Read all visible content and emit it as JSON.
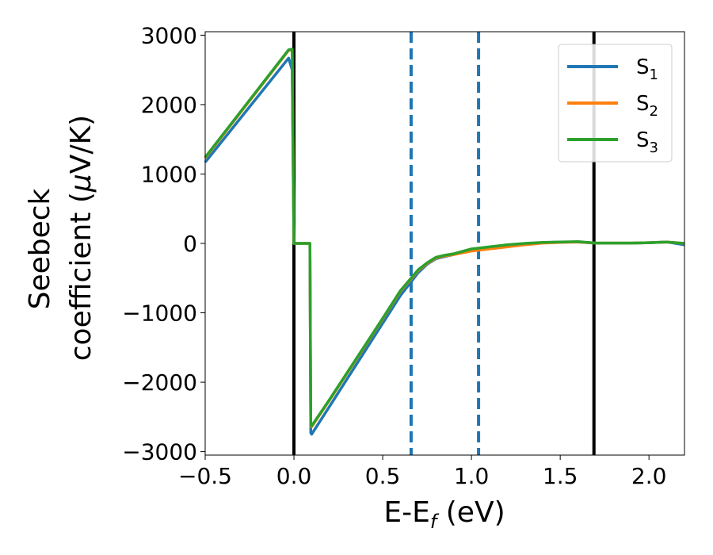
{
  "chart_data": {
    "type": "line",
    "title": "",
    "xlabel": "E-E",
    "xlabel_sub": "f",
    "xlabel_unit": " (eV)",
    "ylabel_line1": "Seebeck",
    "ylabel_line2": "coefficient  (",
    "ylabel_mu": "μ",
    "ylabel_unit": "V/K)",
    "xlim": [
      -0.5,
      2.2
    ],
    "ylim": [
      -3050,
      3050
    ],
    "xticks": [
      -0.5,
      0.0,
      0.5,
      1.0,
      1.5,
      2.0
    ],
    "xtick_labels": [
      "−0.5",
      "0.0",
      "0.5",
      "1.0",
      "1.5",
      "2.0"
    ],
    "yticks": [
      -3000,
      -2000,
      -1000,
      0,
      1000,
      2000,
      3000
    ],
    "ytick_labels": [
      "−3000",
      "−2000",
      "−1000",
      "0",
      "1000",
      "2000",
      "3000"
    ],
    "grid": false,
    "legend_position": "top-right",
    "vlines": [
      {
        "x": 0.0,
        "style": "solid",
        "color": "#000000"
      },
      {
        "x": 1.69,
        "style": "solid",
        "color": "#000000"
      },
      {
        "x": 0.66,
        "style": "dashed",
        "color": "#1f77b4"
      },
      {
        "x": 1.04,
        "style": "dashed",
        "color": "#1f77b4"
      }
    ],
    "series": [
      {
        "name": "S",
        "sub": "1",
        "color": "#1f77b4",
        "x": [
          -0.5,
          -0.03,
          -0.01,
          0.0,
          0.09,
          0.095,
          0.1,
          0.2,
          0.3,
          0.4,
          0.5,
          0.6,
          0.7,
          0.75,
          0.8,
          0.85,
          0.9,
          1.0,
          1.1,
          1.2,
          1.3,
          1.4,
          1.5,
          1.6,
          1.7,
          1.8,
          1.9,
          2.0,
          2.1,
          2.2
        ],
        "y": [
          1170,
          2670,
          2500,
          0,
          0,
          -2730,
          -2750,
          -2350,
          -1950,
          -1550,
          -1150,
          -750,
          -420,
          -300,
          -220,
          -190,
          -160,
          -90,
          -60,
          -30,
          -10,
          10,
          20,
          20,
          5,
          5,
          5,
          10,
          20,
          -20
        ]
      },
      {
        "name": "S",
        "sub": "2",
        "color": "#ff7f0e",
        "x": [
          -0.5,
          -0.03,
          -0.01,
          0.0,
          0.09,
          0.095,
          0.1,
          0.2,
          0.3,
          0.4,
          0.5,
          0.6,
          0.7,
          0.75,
          0.8,
          0.85,
          0.9,
          1.0,
          1.1,
          1.2,
          1.3,
          1.4,
          1.5,
          1.6,
          1.7,
          1.8,
          1.9,
          2.0,
          2.1,
          2.2
        ],
        "y": [
          1230,
          2780,
          2790,
          0,
          0,
          -2630,
          -2640,
          -2260,
          -1870,
          -1480,
          -1090,
          -690,
          -390,
          -290,
          -210,
          -180,
          -160,
          -110,
          -80,
          -50,
          -20,
          5,
          15,
          20,
          5,
          5,
          5,
          10,
          20,
          0
        ]
      },
      {
        "name": "S",
        "sub": "3",
        "color": "#2ca02c",
        "x": [
          -0.5,
          -0.03,
          -0.01,
          0.0,
          0.09,
          0.095,
          0.1,
          0.2,
          0.3,
          0.4,
          0.5,
          0.6,
          0.7,
          0.75,
          0.8,
          0.85,
          0.9,
          1.0,
          1.1,
          1.2,
          1.3,
          1.4,
          1.5,
          1.6,
          1.7,
          1.8,
          1.9,
          2.0,
          2.1,
          2.2
        ],
        "y": [
          1240,
          2790,
          2800,
          0,
          0,
          -2620,
          -2630,
          -2250,
          -1860,
          -1470,
          -1080,
          -680,
          -380,
          -280,
          -200,
          -170,
          -150,
          -80,
          -50,
          -20,
          0,
          15,
          20,
          25,
          5,
          5,
          5,
          10,
          20,
          0
        ]
      }
    ]
  }
}
